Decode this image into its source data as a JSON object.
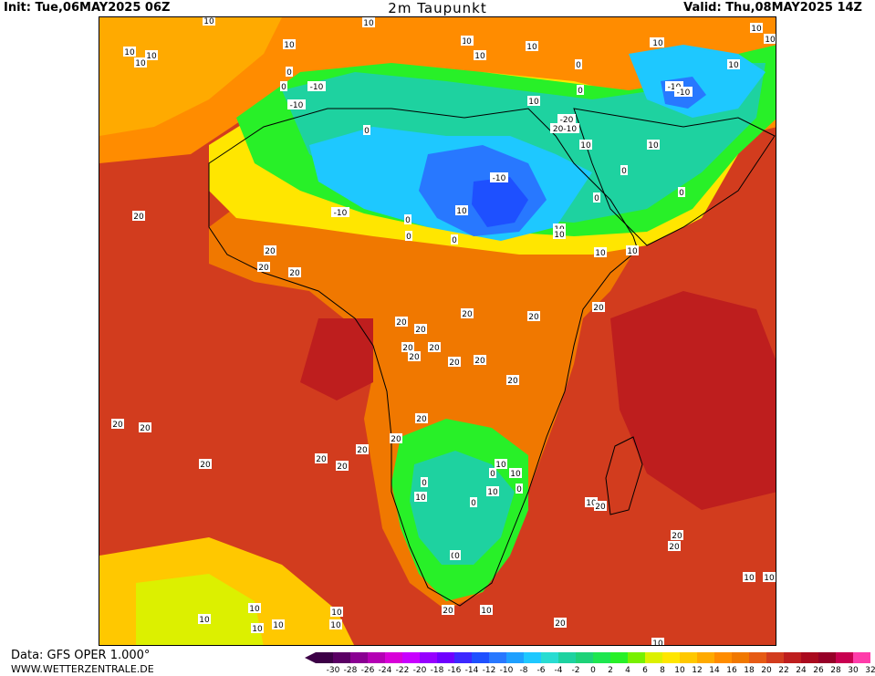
{
  "header": {
    "init": "Init: Tue,06MAY2025 06Z",
    "title": "2m Taupunkt",
    "valid": "Valid: Thu,08MAY2025 14Z"
  },
  "footer": {
    "data_source": "Data: GFS OPER 1.000°",
    "website": "WWW.WETTERZENTRALE.DE"
  },
  "legend": {
    "ticks": [
      "-30",
      "-28",
      "-26",
      "-24",
      "-22",
      "-20",
      "-18",
      "-16",
      "-14",
      "-12",
      "-10",
      "-8",
      "-6",
      "-4",
      "-2",
      "0",
      "2",
      "4",
      "6",
      "8",
      "10",
      "12",
      "14",
      "16",
      "18",
      "20",
      "22",
      "24",
      "26",
      "28",
      "30",
      "32"
    ],
    "colors": [
      "#3c0046",
      "#5a0064",
      "#8a0092",
      "#b400b4",
      "#d800d8",
      "#c800ff",
      "#9600ff",
      "#6e00ff",
      "#3c28ff",
      "#1e50ff",
      "#2878ff",
      "#1ea0ff",
      "#1ec8ff",
      "#28dcd2",
      "#1ed2a0",
      "#1ed278",
      "#1ee650",
      "#28f028",
      "#78f000",
      "#dcf000",
      "#ffe600",
      "#ffc800",
      "#ffaa00",
      "#ff8c00",
      "#f07800",
      "#e65a14",
      "#d23c1e",
      "#be1e1e",
      "#aa0a1e",
      "#960028",
      "#c80050",
      "#ff3caa"
    ]
  },
  "map_colors": {
    "ocean_warm": "#d23c1e",
    "ocean_hot": "#be1e1e",
    "mild": "#f07800",
    "orange": "#ff8c00",
    "light_orange": "#ffaa00",
    "yellow_orange": "#ffc800",
    "yellow": "#ffe600",
    "lime": "#dcf000",
    "green": "#28f028",
    "sea_green": "#1ed2a0",
    "cyan": "#1ec8ff",
    "blue": "#2878ff",
    "deep_blue": "#1e50ff",
    "coast": "#000000",
    "contour": "#999999"
  },
  "contour_labels": [
    "10",
    "10",
    "10",
    "10",
    "10",
    "10",
    "10",
    "10",
    "10",
    "10",
    "10",
    "10",
    "10",
    "10",
    "0",
    "0",
    "-10",
    "-10",
    "-10",
    "-10",
    "0",
    "10",
    "0",
    "-20",
    "20-10",
    "0",
    "0",
    "10",
    "10",
    "0",
    "0",
    "0",
    "20",
    "-10",
    "-10",
    "10",
    "0",
    "0",
    "0",
    "10",
    "10",
    "10",
    "10",
    "20",
    "20",
    "20",
    "20",
    "20",
    "20",
    "20",
    "20",
    "20",
    "20",
    "20",
    "20",
    "20",
    "20",
    "20",
    "20",
    "20",
    "20",
    "20",
    "20",
    "20",
    "20",
    "10",
    "20",
    "20",
    "20",
    "10",
    "10",
    "10",
    "0",
    "0",
    "0",
    "0",
    "0",
    "20",
    "10",
    "20",
    "10",
    "10",
    "10",
    "10",
    "10",
    "10",
    "10",
    "10",
    "10",
    "0",
    "10"
  ]
}
